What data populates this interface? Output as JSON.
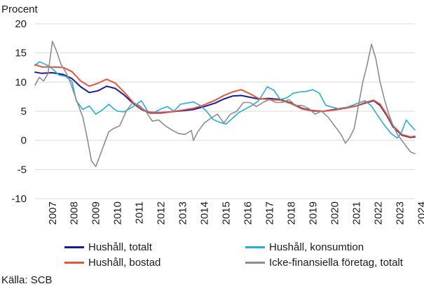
{
  "chart_data": {
    "type": "line",
    "ylabel": "Procent",
    "ylim": [
      -10,
      20
    ],
    "yticks": [
      -10,
      -5,
      0,
      5,
      10,
      15,
      20
    ],
    "xlim": [
      2006.7,
      2024.2
    ],
    "xticks": [
      "2007",
      "2008",
      "2009",
      "2010",
      "2011",
      "2012",
      "2013",
      "2014",
      "2015",
      "2016",
      "2017",
      "2018",
      "2019",
      "2020",
      "2021",
      "2022",
      "2023",
      "2024"
    ],
    "grid": "horizontal",
    "legend_position": "bottom",
    "series": [
      {
        "name": "Hushåll, totalt",
        "color": "#1a1aa0",
        "x": [
          2006.7,
          2007.0,
          2007.5,
          2008.0,
          2008.4,
          2008.8,
          2009.2,
          2009.6,
          2010.0,
          2010.4,
          2010.8,
          2011.2,
          2011.6,
          2012.0,
          2012.5,
          2013.0,
          2013.5,
          2014.0,
          2014.5,
          2015.0,
          2015.4,
          2015.8,
          2016.2,
          2016.6,
          2017.0,
          2017.5,
          2018.0,
          2018.5,
          2019.0,
          2019.5,
          2020.0,
          2020.5,
          2021.0,
          2021.5,
          2021.9,
          2022.3,
          2022.6,
          2022.9,
          2023.2,
          2023.6,
          2024.0,
          2024.2
        ],
        "values": [
          11.7,
          11.5,
          11.6,
          11.3,
          10.6,
          9.2,
          8.2,
          8.5,
          9.3,
          8.9,
          7.8,
          6.4,
          5.3,
          4.7,
          4.7,
          4.9,
          5.1,
          5.3,
          5.8,
          6.4,
          7.1,
          7.6,
          7.7,
          7.4,
          7.1,
          7.2,
          7.0,
          6.4,
          5.5,
          5.1,
          5.0,
          5.3,
          5.6,
          5.9,
          6.4,
          6.8,
          6.0,
          4.3,
          2.3,
          0.9,
          0.5,
          0.6
        ]
      },
      {
        "name": "Hushåll, konsumtion",
        "color": "#1fb1d9",
        "x": [
          2006.7,
          2006.9,
          2007.2,
          2007.5,
          2007.8,
          2008.1,
          2008.4,
          2008.6,
          2008.9,
          2009.2,
          2009.5,
          2009.8,
          2010.1,
          2010.3,
          2010.5,
          2010.8,
          2011.0,
          2011.3,
          2011.6,
          2011.9,
          2012.2,
          2012.5,
          2012.8,
          2013.1,
          2013.4,
          2013.7,
          2014.0,
          2014.3,
          2014.6,
          2014.9,
          2015.2,
          2015.5,
          2015.8,
          2016.1,
          2016.4,
          2016.7,
          2017.0,
          2017.2,
          2017.4,
          2017.7,
          2018.0,
          2018.3,
          2018.6,
          2018.9,
          2019.2,
          2019.5,
          2019.8,
          2020.1,
          2020.4,
          2020.7,
          2021.0,
          2021.3,
          2021.6,
          2021.9,
          2022.2,
          2022.5,
          2022.8,
          2023.1,
          2023.4,
          2023.6,
          2023.8,
          2024.0,
          2024.2
        ],
        "values": [
          12.8,
          13.5,
          13.0,
          12.3,
          11.2,
          11.0,
          10.1,
          6.8,
          5.3,
          5.9,
          4.5,
          5.2,
          6.2,
          5.5,
          5.0,
          4.9,
          5.3,
          6.0,
          6.8,
          4.9,
          4.8,
          5.4,
          5.8,
          5.0,
          6.2,
          6.4,
          6.6,
          6.0,
          5.0,
          3.6,
          3.1,
          2.8,
          3.8,
          4.8,
          5.4,
          6.0,
          6.8,
          8.0,
          9.2,
          8.6,
          7.0,
          7.3,
          8.1,
          8.3,
          8.4,
          8.7,
          8.1,
          6.0,
          5.7,
          5.4,
          5.6,
          6.0,
          6.4,
          6.8,
          5.9,
          4.2,
          2.6,
          1.2,
          0.4,
          1.5,
          3.5,
          2.6,
          1.8
        ]
      },
      {
        "name": "Hushåll, bostad",
        "color": "#e8553a",
        "x": [
          2006.7,
          2007.0,
          2007.5,
          2008.0,
          2008.4,
          2008.8,
          2009.2,
          2009.6,
          2010.0,
          2010.4,
          2010.8,
          2011.2,
          2011.6,
          2012.0,
          2012.5,
          2013.0,
          2013.5,
          2014.0,
          2014.5,
          2015.0,
          2015.4,
          2015.8,
          2016.2,
          2016.6,
          2017.0,
          2017.5,
          2018.0,
          2018.5,
          2019.0,
          2019.5,
          2020.0,
          2020.5,
          2021.0,
          2021.5,
          2021.9,
          2022.3,
          2022.6,
          2022.9,
          2023.2,
          2023.6,
          2024.0,
          2024.2
        ],
        "values": [
          13.0,
          12.6,
          12.6,
          12.5,
          11.8,
          10.2,
          9.3,
          9.8,
          10.5,
          9.8,
          8.3,
          6.6,
          5.4,
          4.8,
          4.8,
          4.9,
          5.2,
          5.5,
          6.1,
          6.9,
          7.7,
          8.3,
          8.7,
          8.0,
          7.2,
          7.0,
          6.9,
          6.3,
          5.4,
          5.0,
          5.0,
          5.2,
          5.5,
          5.9,
          6.5,
          6.9,
          6.2,
          4.5,
          2.5,
          1.0,
          0.6,
          0.7
        ]
      },
      {
        "name": "Icke-finansiella företag, totalt",
        "color": "#8c8c8c",
        "x": [
          2006.7,
          2006.9,
          2007.1,
          2007.3,
          2007.5,
          2007.7,
          2007.9,
          2008.1,
          2008.3,
          2008.6,
          2008.9,
          2009.1,
          2009.3,
          2009.5,
          2009.7,
          2009.9,
          2010.1,
          2010.3,
          2010.6,
          2010.9,
          2011.2,
          2011.5,
          2011.8,
          2012.1,
          2012.4,
          2012.7,
          2013.0,
          2013.3,
          2013.6,
          2013.9,
          2014.0,
          2014.2,
          2014.5,
          2014.8,
          2015.1,
          2015.4,
          2015.7,
          2016.0,
          2016.3,
          2016.6,
          2016.9,
          2017.2,
          2017.5,
          2017.8,
          2018.1,
          2018.4,
          2018.7,
          2019.0,
          2019.3,
          2019.6,
          2019.9,
          2020.2,
          2020.5,
          2020.8,
          2021.0,
          2021.2,
          2021.4,
          2021.6,
          2021.8,
          2022.0,
          2022.2,
          2022.4,
          2022.6,
          2022.8,
          2023.0,
          2023.2,
          2023.4,
          2023.6,
          2023.8,
          2024.0,
          2024.2
        ],
        "values": [
          9.5,
          10.8,
          10.2,
          11.5,
          17.0,
          15.2,
          13.0,
          11.8,
          10.2,
          7.0,
          4.0,
          0.5,
          -3.5,
          -4.5,
          -2.5,
          -0.5,
          1.5,
          2.0,
          2.5,
          5.0,
          6.5,
          6.0,
          5.0,
          3.3,
          3.5,
          2.5,
          1.8,
          1.2,
          1.0,
          1.7,
          0.0,
          1.5,
          3.0,
          3.8,
          4.5,
          3.0,
          4.5,
          5.0,
          6.5,
          6.5,
          5.8,
          6.5,
          7.0,
          6.5,
          6.5,
          7.0,
          6.0,
          6.0,
          5.5,
          4.5,
          5.0,
          4.0,
          2.5,
          1.0,
          -0.5,
          0.5,
          2.0,
          6.0,
          10.0,
          13.0,
          16.5,
          14.0,
          10.0,
          7.0,
          4.5,
          2.5,
          1.0,
          0.0,
          -1.0,
          -2.0,
          -2.3
        ]
      }
    ]
  },
  "legend": {
    "items": [
      {
        "label": "Hushåll, totalt",
        "color": "#1a1aa0"
      },
      {
        "label": "Hushåll, konsumtion",
        "color": "#1fb1d9"
      },
      {
        "label": "Hushåll, bostad",
        "color": "#e8553a"
      },
      {
        "label": "Icke-finansiella företag, totalt",
        "color": "#8c8c8c"
      }
    ]
  },
  "source": "Källa: SCB"
}
